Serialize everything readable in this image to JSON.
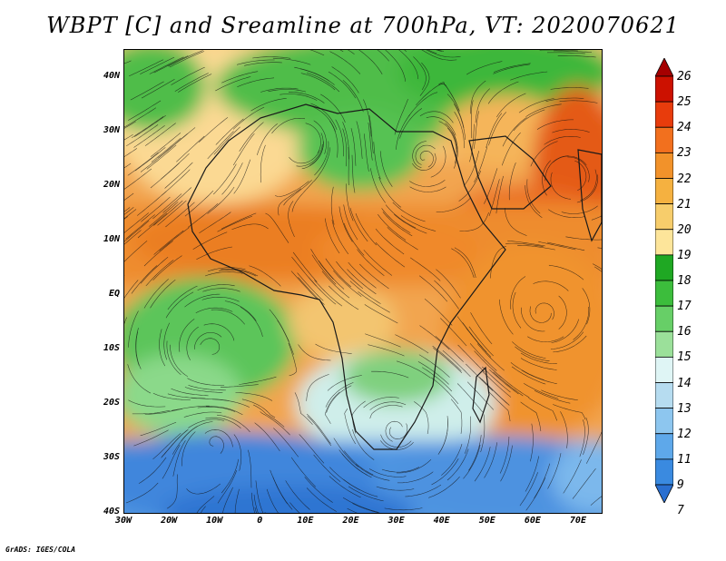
{
  "title": "WBPT [C] and Sreamline at 700hPa, VT: 2020070621",
  "credit": "GrADS: IGES/COLA",
  "latitude_labels": [
    "40N",
    "30N",
    "20N",
    "10N",
    "EQ",
    "10S",
    "20S",
    "30S",
    "40S"
  ],
  "longitude_labels": [
    "30W",
    "20W",
    "10W",
    "0",
    "10E",
    "20E",
    "30E",
    "40E",
    "50E",
    "60E",
    "70E"
  ],
  "map_extent": {
    "lon_min": -30,
    "lon_max": 75,
    "lat_min": -40,
    "lat_max": 45
  },
  "colorbar": {
    "labels": [
      "26",
      "25",
      "24",
      "23",
      "22",
      "21",
      "20",
      "19",
      "18",
      "17",
      "16",
      "15",
      "14",
      "13",
      "12",
      "11",
      "9",
      "7"
    ],
    "colors": [
      "#a50000",
      "#cc1100",
      "#e83c0c",
      "#f2701e",
      "#f2922a",
      "#f5b140",
      "#f7cd6b",
      "#fde59a",
      "#1fa823",
      "#3cbd3c",
      "#67cf67",
      "#9be09a",
      "#dff5f5",
      "#b6dcf0",
      "#8dc6ef",
      "#5ea8ea",
      "#3a8ae0",
      "#2a6fd0"
    ]
  }
}
